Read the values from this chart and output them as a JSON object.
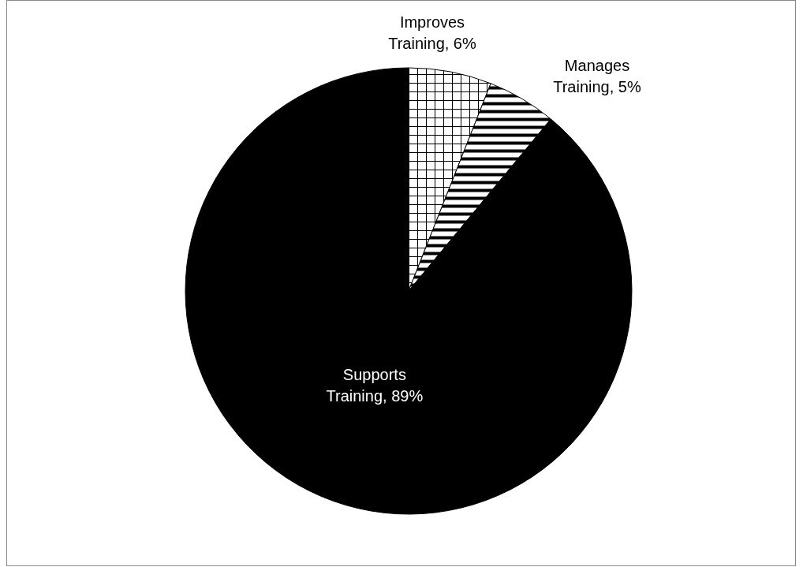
{
  "chart_data": {
    "type": "pie",
    "categories": [
      "Improves Training",
      "Manages Training",
      "Supports Training"
    ],
    "values": [
      6,
      5,
      89
    ],
    "colors": [
      "#ffffff",
      "#ffffff",
      "#000000"
    ],
    "value_labels": [
      "6%",
      "5%",
      "89%"
    ],
    "legend": false
  }
}
